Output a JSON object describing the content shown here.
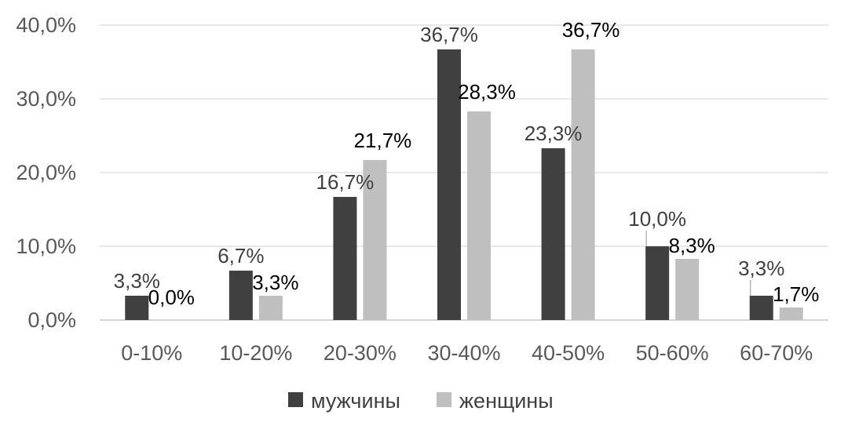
{
  "chart_data": {
    "type": "bar",
    "categories": [
      "0-10%",
      "10-20%",
      "20-30%",
      "30-40%",
      "40-50%",
      "50-60%",
      "60-70%"
    ],
    "series": [
      {
        "name": "мужчины",
        "color": "#404040",
        "values": [
          3.3,
          6.7,
          16.7,
          36.7,
          23.3,
          10.0,
          3.3
        ],
        "labels": [
          "3,3%",
          "6,7%",
          "16,7%",
          "36,7%",
          "23,3%",
          "10,0%",
          "3,3%"
        ]
      },
      {
        "name": "женщины",
        "color": "#bfbfbf",
        "values": [
          0.0,
          3.3,
          21.7,
          28.3,
          36.7,
          8.3,
          1.7
        ],
        "labels": [
          "0,0%",
          "3,3%",
          "21,7%",
          "28,3%",
          "36,7%",
          "8,3%",
          "1,7%"
        ]
      }
    ],
    "yticks": [
      "0,0%",
      "10,0%",
      "20,0%",
      "30,0%",
      "40,0%"
    ],
    "ylim": [
      0,
      40
    ],
    "grid": true,
    "legend": "bottom"
  }
}
